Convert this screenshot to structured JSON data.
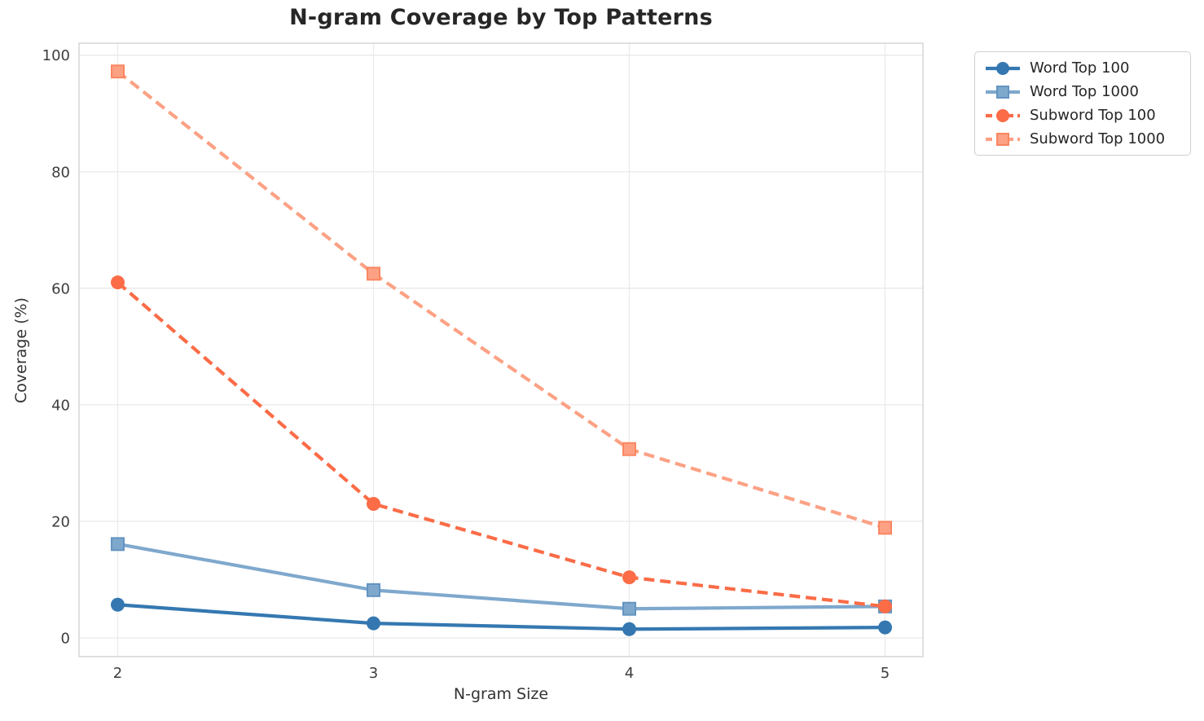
{
  "figure": {
    "background": "#ffffff"
  },
  "chart_data": {
    "type": "line",
    "title": "N-gram Coverage by Top Patterns",
    "xlabel": "N-gram Size",
    "ylabel": "Coverage (%)",
    "x": [
      2,
      3,
      4,
      5
    ],
    "xtick_labels": [
      "2",
      "3",
      "4",
      "5"
    ],
    "ytick_values": [
      0,
      20,
      40,
      60,
      80,
      100
    ],
    "xlim": [
      1.85,
      5.15
    ],
    "ylim": [
      0,
      100
    ],
    "grid": true,
    "legend": {
      "position": "outside-upper-right"
    },
    "series": [
      {
        "name": "Word Top 100",
        "values": [
          5.7,
          2.5,
          1.5,
          1.8
        ],
        "color": "#3578b1",
        "marker": "circle",
        "marker_edge": "#3578b1",
        "line_style": "solid"
      },
      {
        "name": "Word Top 1000",
        "values": [
          16.1,
          8.2,
          5.0,
          5.4
        ],
        "color": "#7fa8cd",
        "marker": "square",
        "marker_edge": "#6394c1",
        "line_style": "solid"
      },
      {
        "name": "Subword Top 100",
        "values": [
          61.0,
          23.0,
          10.4,
          5.4
        ],
        "color": "#fb6c47",
        "marker": "circle",
        "marker_edge": "#fb6c47",
        "line_style": "dashed"
      },
      {
        "name": "Subword Top 1000",
        "values": [
          97.2,
          62.5,
          32.4,
          18.9
        ],
        "color": "#fca184",
        "marker": "square",
        "marker_edge": "#fa8661",
        "line_style": "dashed"
      }
    ],
    "colors": {
      "grid": "#eaeaea",
      "frame": "#d5d5d5",
      "tick_text": "#3d3d3d",
      "title_text": "#262626",
      "label_text": "#333333"
    }
  }
}
